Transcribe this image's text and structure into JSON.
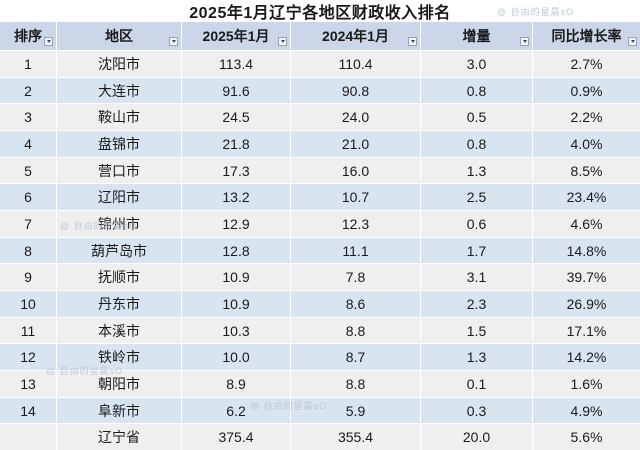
{
  "title": "2025年1月辽宁各地区财政收入排名",
  "watermark": {
    "text": "@ 自由的星晨sO"
  },
  "table": {
    "columns": [
      "排序",
      "地区",
      "2025年1月",
      "2024年1月",
      "增量",
      "同比增长率"
    ],
    "rows": [
      [
        "1",
        "沈阳市",
        "113.4",
        "110.4",
        "3.0",
        "2.7%"
      ],
      [
        "2",
        "大连市",
        "91.6",
        "90.8",
        "0.8",
        "0.9%"
      ],
      [
        "3",
        "鞍山市",
        "24.5",
        "24.0",
        "0.5",
        "2.2%"
      ],
      [
        "4",
        "盘锦市",
        "21.8",
        "21.0",
        "0.8",
        "4.0%"
      ],
      [
        "5",
        "营口市",
        "17.3",
        "16.0",
        "1.3",
        "8.5%"
      ],
      [
        "6",
        "辽阳市",
        "13.2",
        "10.7",
        "2.5",
        "23.4%"
      ],
      [
        "7",
        "锦州市",
        "12.9",
        "12.3",
        "0.6",
        "4.6%"
      ],
      [
        "8",
        "葫芦岛市",
        "12.8",
        "11.1",
        "1.7",
        "14.8%"
      ],
      [
        "9",
        "抚顺市",
        "10.9",
        "7.8",
        "3.1",
        "39.7%"
      ],
      [
        "10",
        "丹东市",
        "10.9",
        "8.6",
        "2.3",
        "26.9%"
      ],
      [
        "11",
        "本溪市",
        "10.3",
        "8.8",
        "1.5",
        "17.1%"
      ],
      [
        "12",
        "铁岭市",
        "10.0",
        "8.7",
        "1.3",
        "14.2%"
      ],
      [
        "13",
        "朝阳市",
        "8.9",
        "8.8",
        "0.1",
        "1.6%"
      ],
      [
        "14",
        "阜新市",
        "6.2",
        "5.9",
        "0.3",
        "4.9%"
      ]
    ],
    "total_row": [
      "",
      "辽宁省",
      "375.4",
      "355.4",
      "20.0",
      "5.6%"
    ]
  },
  "colors": {
    "header_bg": "#cbd6e8",
    "row_blue": "#d9e4f1",
    "row_gray": "#efeff0",
    "text": "#1a1a1a",
    "watermark": "#b9c4d3"
  }
}
